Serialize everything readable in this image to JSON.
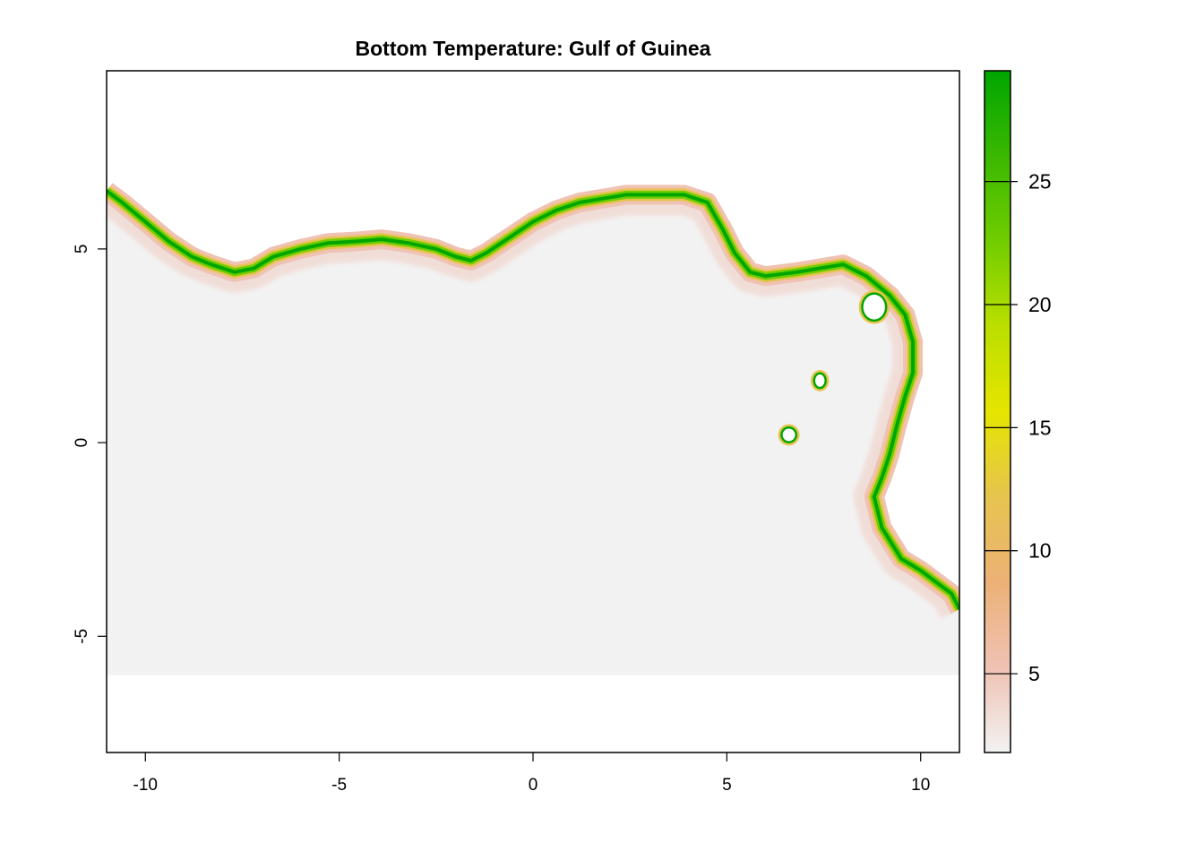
{
  "title": "Bottom Temperature: Gulf of Guinea",
  "map": {
    "x_range": [
      -11,
      11
    ],
    "y_range": [
      -8,
      9.6
    ],
    "x_ticks": [
      -10,
      -5,
      0,
      5,
      10
    ],
    "y_ticks": [
      5,
      0,
      -5
    ],
    "data_south_limit": -6,
    "coastline": [
      [
        -11,
        6.5
      ],
      [
        -10.6,
        6.2
      ],
      [
        -10.0,
        5.7
      ],
      [
        -9.4,
        5.2
      ],
      [
        -8.8,
        4.8
      ],
      [
        -8.3,
        4.6
      ],
      [
        -7.7,
        4.4
      ],
      [
        -7.2,
        4.5
      ],
      [
        -6.7,
        4.8
      ],
      [
        -6.0,
        5.0
      ],
      [
        -5.3,
        5.15
      ],
      [
        -4.5,
        5.2
      ],
      [
        -3.9,
        5.25
      ],
      [
        -3.2,
        5.15
      ],
      [
        -2.5,
        5.0
      ],
      [
        -2.0,
        4.8
      ],
      [
        -1.6,
        4.7
      ],
      [
        -1.2,
        4.9
      ],
      [
        -0.6,
        5.3
      ],
      [
        0.0,
        5.7
      ],
      [
        0.6,
        6.0
      ],
      [
        1.2,
        6.2
      ],
      [
        1.8,
        6.3
      ],
      [
        2.4,
        6.4
      ],
      [
        3.2,
        6.4
      ],
      [
        3.9,
        6.4
      ],
      [
        4.5,
        6.2
      ],
      [
        4.9,
        5.5
      ],
      [
        5.2,
        4.9
      ],
      [
        5.6,
        4.4
      ],
      [
        6.0,
        4.3
      ],
      [
        6.8,
        4.4
      ],
      [
        7.4,
        4.5
      ],
      [
        8.0,
        4.6
      ],
      [
        8.6,
        4.3
      ],
      [
        9.2,
        3.8
      ],
      [
        9.6,
        3.3
      ],
      [
        9.8,
        2.6
      ],
      [
        9.8,
        1.8
      ],
      [
        9.6,
        1.2
      ],
      [
        9.4,
        0.5
      ],
      [
        9.2,
        -0.3
      ],
      [
        9.0,
        -0.9
      ],
      [
        8.8,
        -1.4
      ],
      [
        9.0,
        -2.2
      ],
      [
        9.5,
        -3.0
      ],
      [
        10.0,
        -3.3
      ],
      [
        10.4,
        -3.6
      ],
      [
        10.8,
        -3.9
      ],
      [
        11,
        -4.3
      ]
    ],
    "islands": [
      {
        "lon": 8.8,
        "lat": 3.5,
        "rx": 0.28,
        "ry": 0.32
      },
      {
        "lon": 7.4,
        "lat": 1.6,
        "rx": 0.12,
        "ry": 0.16
      },
      {
        "lon": 6.6,
        "lat": 0.2,
        "rx": 0.16,
        "ry": 0.16
      }
    ]
  },
  "legend": {
    "range": [
      1.8,
      29.5
    ],
    "ticks": [
      5,
      10,
      15,
      20,
      25
    ],
    "palette": [
      "#f2f2f2",
      "#efc2b3",
      "#ecb176",
      "#e6c44f",
      "#e5e500",
      "#bbdf00",
      "#71cd00",
      "#3bb800",
      "#00a600"
    ]
  }
}
